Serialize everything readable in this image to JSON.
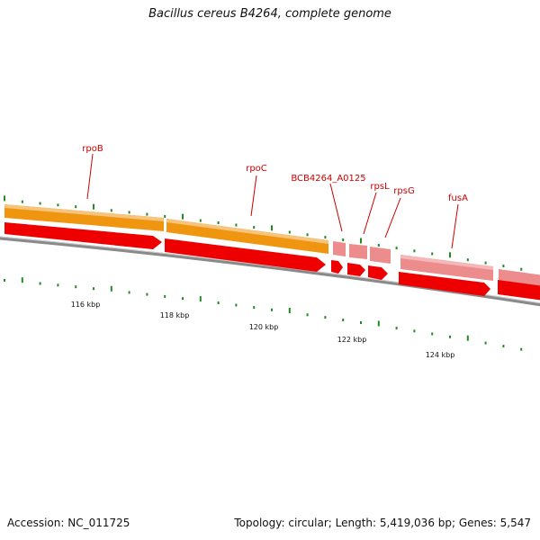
{
  "title": "Bacillus cereus B4264, complete genome",
  "footer": {
    "accession": "Accession: NC_011725",
    "topology": "Topology: circular; Length: 5,419,036 bp; Genes: 5,547"
  },
  "colors": {
    "label_red": "#cc0000",
    "tick_green": "#228b22",
    "backbone_grey": "#888888",
    "gene_red": "#ee0000",
    "gene_orange": "#f0950f",
    "gene_pink": "#ec8c8c"
  },
  "genes": [
    {
      "name": "rpoB"
    },
    {
      "name": "rpoC"
    },
    {
      "name": "BCB4264_A0125"
    },
    {
      "name": "rpsL"
    },
    {
      "name": "rpsG"
    },
    {
      "name": "fusA"
    }
  ],
  "kbp_labels": [
    "116 kbp",
    "118 kbp",
    "120 kbp",
    "122 kbp",
    "124 kbp"
  ]
}
